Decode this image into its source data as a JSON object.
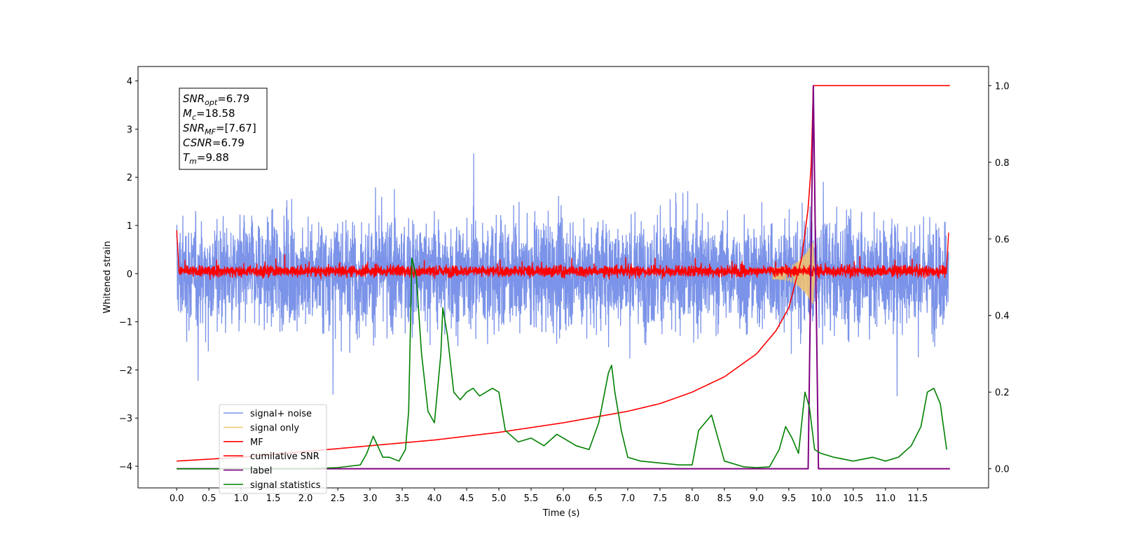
{
  "chart_data": {
    "type": "line",
    "xlabel": "Time (s)",
    "ylabel": "Whitened strain",
    "xlim": [
      -0.6,
      12.6
    ],
    "ylim_left": [
      -4.45,
      4.3
    ],
    "ylim_right": [
      -0.05,
      1.05
    ],
    "x_ticks": [
      "0.0",
      "0.5",
      "1.0",
      "1.5",
      "2.0",
      "2.5",
      "3.0",
      "3.5",
      "4.0",
      "4.5",
      "5.0",
      "5.5",
      "6.0",
      "6.5",
      "7.0",
      "7.5",
      "8.0",
      "8.5",
      "9.0",
      "9.5",
      "10.0",
      "10.5",
      "11.0",
      "11.5"
    ],
    "y_ticks_left": [
      "4",
      "3",
      "2",
      "1",
      "0",
      "−1",
      "−2",
      "−3",
      "−4"
    ],
    "y_ticks_right": [
      "1.0",
      "0.8",
      "0.6",
      "0.4",
      "0.2",
      "0.0"
    ],
    "info_box": [
      {
        "base": "SNR",
        "sub": "opt",
        "value": "=6.79"
      },
      {
        "base": "M",
        "sub": "c",
        "value": "=18.58"
      },
      {
        "base": "SNR",
        "sub": "MF",
        "value": "=[7.67]"
      },
      {
        "base": "CSNR",
        "sub": "",
        "value": "=6.79"
      },
      {
        "base": "T",
        "sub": "m",
        "value": "=9.88"
      }
    ],
    "series": [
      {
        "name": "signal+ noise",
        "color": "#7b93e8",
        "axis": "left",
        "note": "dense noise, amplitude ~±3"
      },
      {
        "name": "signal only",
        "color": "#f5c36b",
        "axis": "left",
        "note": "chirp peaking near t=9.88"
      },
      {
        "name": "MF",
        "color": "#ff0000",
        "axis": "left",
        "note": "noisy around 0, amplitude ~±0.3"
      },
      {
        "name": "cumilative SNR",
        "color": "#ff0000",
        "axis": "right",
        "x": [
          0.0,
          1.0,
          2.0,
          3.0,
          4.0,
          5.0,
          6.0,
          7.0,
          7.5,
          8.0,
          8.5,
          9.0,
          9.3,
          9.5,
          9.7,
          9.8,
          9.85,
          9.88,
          12.0
        ],
        "values": [
          0.02,
          0.03,
          0.045,
          0.06,
          0.075,
          0.095,
          0.12,
          0.15,
          0.17,
          0.2,
          0.24,
          0.3,
          0.36,
          0.42,
          0.55,
          0.68,
          0.8,
          1.0,
          1.0
        ]
      },
      {
        "name": "label",
        "color": "#800080",
        "axis": "right",
        "x": [
          0.0,
          9.8,
          9.88,
          9.96,
          12.0
        ],
        "values": [
          0.0,
          0.0,
          1.0,
          0.0,
          0.0
        ]
      },
      {
        "name": "signal statistics",
        "color": "#008000",
        "axis": "right",
        "x": [
          0.0,
          0.5,
          1.0,
          1.5,
          2.0,
          2.5,
          2.85,
          2.95,
          3.05,
          3.2,
          3.3,
          3.45,
          3.55,
          3.6,
          3.65,
          3.72,
          3.8,
          3.9,
          4.0,
          4.1,
          4.13,
          4.2,
          4.3,
          4.4,
          4.5,
          4.6,
          4.7,
          4.8,
          4.9,
          5.0,
          5.1,
          5.3,
          5.5,
          5.7,
          5.9,
          6.0,
          6.2,
          6.4,
          6.55,
          6.7,
          6.75,
          6.8,
          6.9,
          7.0,
          7.2,
          7.5,
          7.8,
          8.0,
          8.1,
          8.3,
          8.5,
          8.8,
          9.0,
          9.2,
          9.35,
          9.45,
          9.55,
          9.65,
          9.75,
          9.82,
          9.9,
          10.0,
          10.2,
          10.5,
          10.8,
          11.0,
          11.2,
          11.4,
          11.55,
          11.65,
          11.75,
          11.85,
          11.95
        ],
        "values": [
          0.0,
          0.0,
          0.0,
          0.0,
          0.0,
          0.003,
          0.01,
          0.04,
          0.085,
          0.03,
          0.03,
          0.02,
          0.05,
          0.15,
          0.55,
          0.5,
          0.3,
          0.15,
          0.12,
          0.3,
          0.42,
          0.35,
          0.2,
          0.18,
          0.2,
          0.21,
          0.19,
          0.2,
          0.21,
          0.2,
          0.1,
          0.07,
          0.08,
          0.06,
          0.09,
          0.08,
          0.06,
          0.05,
          0.12,
          0.25,
          0.27,
          0.2,
          0.1,
          0.03,
          0.02,
          0.015,
          0.01,
          0.01,
          0.1,
          0.14,
          0.02,
          0.005,
          0.003,
          0.005,
          0.05,
          0.11,
          0.08,
          0.04,
          0.2,
          0.16,
          0.05,
          0.04,
          0.03,
          0.02,
          0.03,
          0.02,
          0.03,
          0.06,
          0.11,
          0.2,
          0.21,
          0.17,
          0.05
        ]
      }
    ]
  }
}
